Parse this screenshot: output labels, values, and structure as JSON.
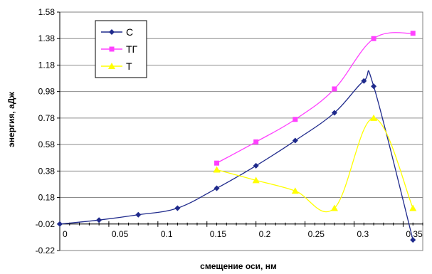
{
  "chart_data": {
    "type": "line",
    "xlabel": "смещение оси, нм",
    "ylabel": "энергия, аДж",
    "xlim": [
      0,
      0.37
    ],
    "ylim": [
      -0.22,
      1.58
    ],
    "xticks": [
      "0",
      "0.05",
      "0.1",
      "0.15",
      "0.2",
      "0.25",
      "0.3",
      "0.35"
    ],
    "yticks": [
      "1.58",
      "1.38",
      "1.18",
      "0.98",
      "0.78",
      "0.58",
      "0.38",
      "0.18",
      "-0.02",
      "-0.22"
    ],
    "grid": "horizontal",
    "legend": "top-left",
    "series": [
      {
        "name": "C",
        "color": "#1f2a8c",
        "marker": "diamond",
        "points": [
          [
            0,
            -0.02
          ],
          [
            0.04,
            0.01
          ],
          [
            0.08,
            0.05
          ],
          [
            0.12,
            0.1
          ],
          [
            0.16,
            0.25
          ],
          [
            0.2,
            0.42
          ],
          [
            0.24,
            0.61
          ],
          [
            0.28,
            0.82
          ],
          [
            0.31,
            1.06
          ],
          [
            0.32,
            1.02
          ],
          [
            0.36,
            -0.14
          ]
        ]
      },
      {
        "name": "ТГ",
        "color": "#ff40ff",
        "marker": "square",
        "points": [
          [
            0.16,
            0.44
          ],
          [
            0.2,
            0.6
          ],
          [
            0.24,
            0.77
          ],
          [
            0.28,
            1.0
          ],
          [
            0.32,
            1.38
          ],
          [
            0.36,
            1.42
          ]
        ]
      },
      {
        "name": "Т",
        "color": "#ffff00",
        "marker": "triangle",
        "points": [
          [
            0.16,
            0.39
          ],
          [
            0.2,
            0.31
          ],
          [
            0.24,
            0.23
          ],
          [
            0.28,
            0.1
          ],
          [
            0.32,
            0.78
          ],
          [
            0.36,
            0.1
          ]
        ]
      }
    ]
  }
}
